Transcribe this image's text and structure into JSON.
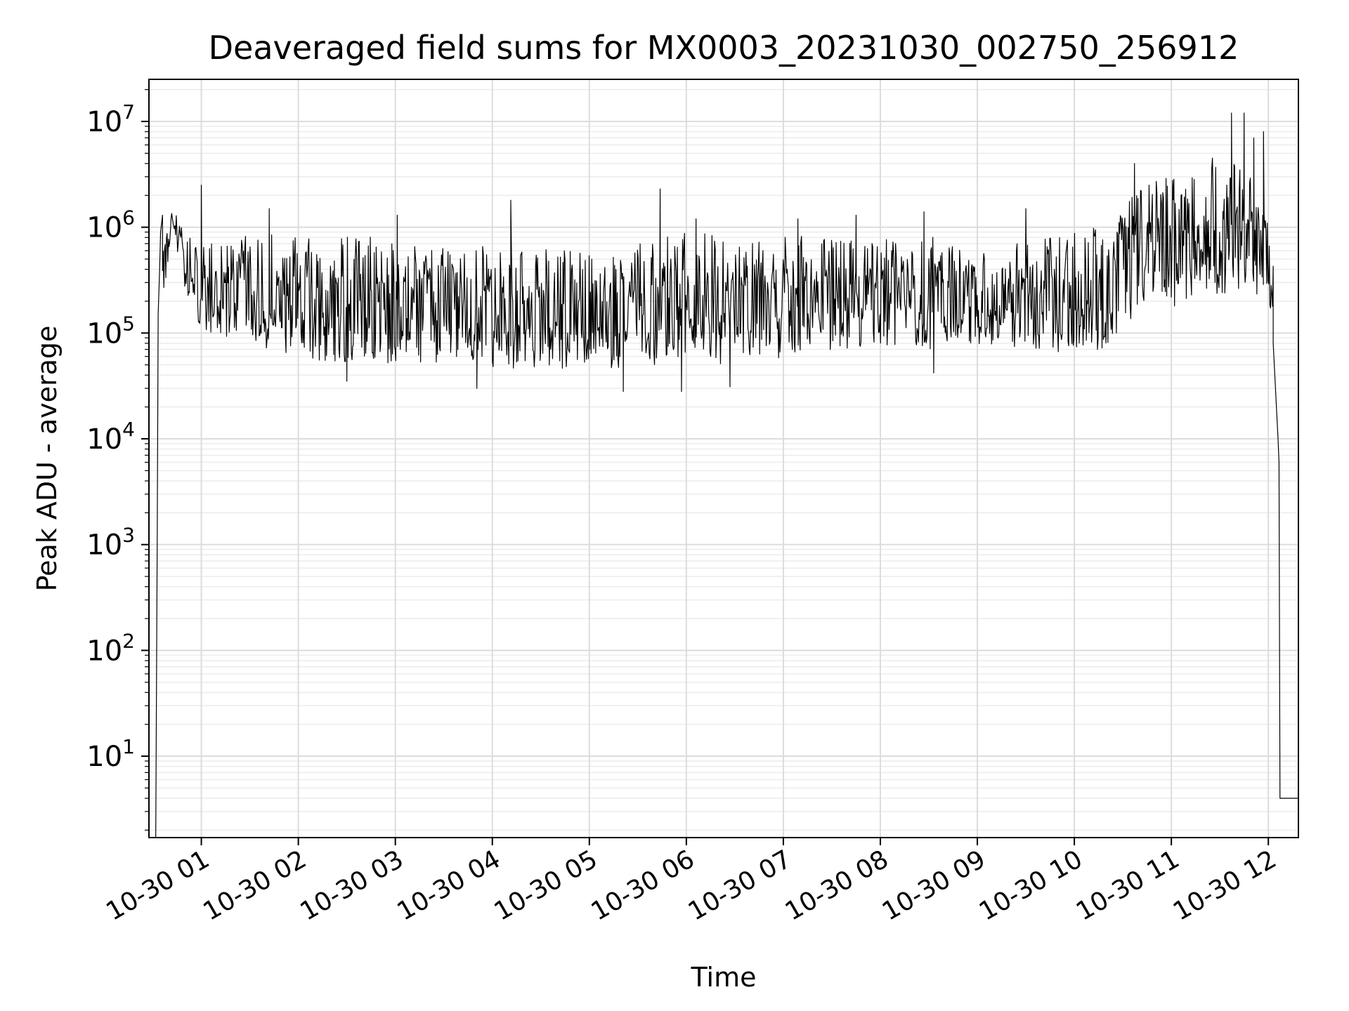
{
  "chart_data": {
    "type": "line",
    "title": "Deaveraged field sums for MX0003_20231030_002750_256912",
    "xlabel": "Time",
    "ylabel": "Peak ADU - average",
    "yscale": "log",
    "ylim": [
      1.7,
      25000000
    ],
    "xlim_hours": [
      0.46,
      12.31
    ],
    "grid": true,
    "legend": "none",
    "line_color": "#000000",
    "xticks": [
      {
        "value": 1,
        "label": "10-30 01"
      },
      {
        "value": 2,
        "label": "10-30 02"
      },
      {
        "value": 3,
        "label": "10-30 03"
      },
      {
        "value": 4,
        "label": "10-30 04"
      },
      {
        "value": 5,
        "label": "10-30 05"
      },
      {
        "value": 6,
        "label": "10-30 06"
      },
      {
        "value": 7,
        "label": "10-30 07"
      },
      {
        "value": 8,
        "label": "10-30 08"
      },
      {
        "value": 9,
        "label": "10-30 09"
      },
      {
        "value": 10,
        "label": "10-30 10"
      },
      {
        "value": 11,
        "label": "10-30 11"
      },
      {
        "value": 12,
        "label": "10-30 12"
      }
    ],
    "yticks": [
      {
        "value": 10,
        "base": "10",
        "exp": "1"
      },
      {
        "value": 100,
        "base": "10",
        "exp": "2"
      },
      {
        "value": 1000,
        "base": "10",
        "exp": "3"
      },
      {
        "value": 10000,
        "base": "10",
        "exp": "4"
      },
      {
        "value": 100000,
        "base": "10",
        "exp": "5"
      },
      {
        "value": 1000000,
        "base": "10",
        "exp": "6"
      },
      {
        "value": 10000000,
        "base": "10",
        "exp": "7"
      }
    ],
    "envelope": {
      "hours": [
        0.6,
        0.7,
        0.85,
        1.0,
        1.5,
        2.0,
        2.5,
        3.0,
        3.5,
        4.0,
        4.5,
        5.0,
        5.5,
        6.0,
        6.5,
        7.0,
        7.5,
        8.0,
        8.6,
        8.95,
        9.3,
        9.6,
        10.0,
        10.4,
        10.7,
        11.0,
        11.5,
        11.9,
        12.05
      ],
      "low": [
        150000,
        1000000,
        200000,
        100000,
        60000,
        50000,
        45000,
        45000,
        45000,
        40000,
        40000,
        40000,
        40000,
        40000,
        45000,
        50000,
        60000,
        65000,
        60000,
        70000,
        70000,
        55000,
        60000,
        60000,
        150000,
        150000,
        200000,
        200000,
        100000
      ],
      "high": [
        600000,
        1500000,
        900000,
        800000,
        900000,
        950000,
        850000,
        800000,
        750000,
        700000,
        650000,
        600000,
        700000,
        900000,
        1000000,
        900000,
        800000,
        800000,
        850000,
        600000,
        700000,
        800000,
        900000,
        1200000,
        2500000,
        3000000,
        5000000,
        3000000,
        1000000
      ]
    },
    "spikes": [
      {
        "hour": 1.0,
        "value": 2500000
      },
      {
        "hour": 1.7,
        "value": 1500000
      },
      {
        "hour": 3.02,
        "value": 1300000
      },
      {
        "hour": 4.19,
        "value": 1800000
      },
      {
        "hour": 5.73,
        "value": 2300000
      },
      {
        "hour": 6.1,
        "value": 1200000
      },
      {
        "hour": 7.15,
        "value": 1200000
      },
      {
        "hour": 7.75,
        "value": 1300000
      },
      {
        "hour": 8.45,
        "value": 1400000
      },
      {
        "hour": 9.5,
        "value": 1500000
      },
      {
        "hour": 10.62,
        "value": 4000000
      },
      {
        "hour": 11.62,
        "value": 12000000
      },
      {
        "hour": 11.75,
        "value": 12000000
      },
      {
        "hour": 11.85,
        "value": 7000000
      },
      {
        "hour": 11.95,
        "value": 8000000
      }
    ],
    "dips": [
      {
        "hour": 2.5,
        "value": 35000
      },
      {
        "hour": 3.84,
        "value": 30000
      },
      {
        "hour": 5.35,
        "value": 28000
      },
      {
        "hour": 5.95,
        "value": 28000
      },
      {
        "hour": 6.45,
        "value": 31000
      },
      {
        "hour": 8.55,
        "value": 42000
      }
    ],
    "startup": {
      "hours": [
        0.53,
        0.545,
        0.555,
        0.57,
        0.58,
        0.6
      ],
      "values": [
        1.7,
        1000,
        150000,
        400000,
        900000,
        1300000
      ]
    },
    "shutdown": {
      "hours": [
        12.05,
        12.1,
        12.11,
        12.12,
        12.15,
        12.31
      ],
      "values": [
        80000,
        10000,
        6000,
        4,
        4,
        4
      ]
    }
  }
}
